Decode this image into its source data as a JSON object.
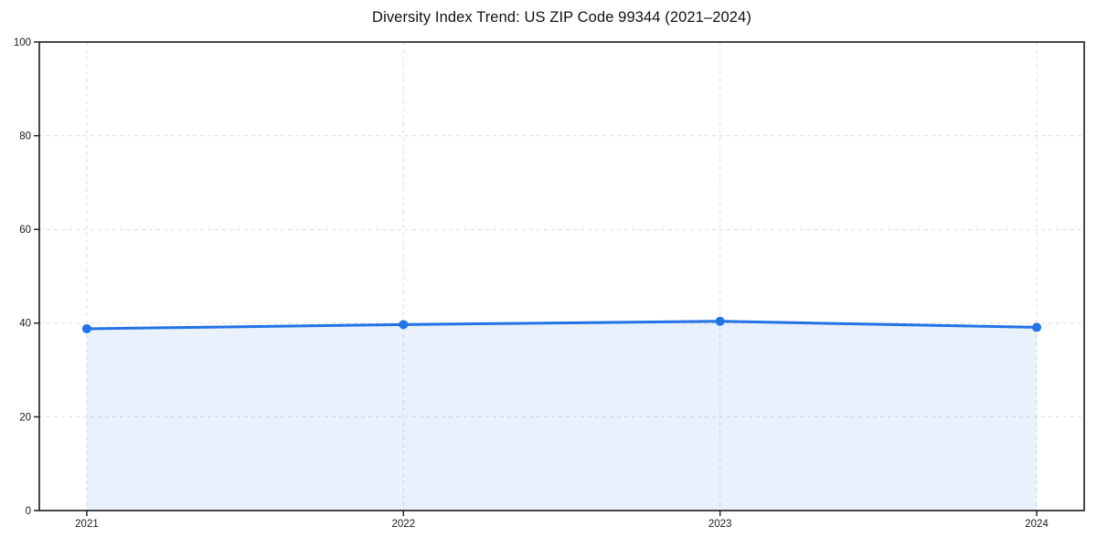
{
  "chart_data": {
    "type": "area",
    "title": "Diversity Index Trend: US ZIP Code 99344 (2021–2024)",
    "categories": [
      "2021",
      "2022",
      "2023",
      "2024"
    ],
    "x": [
      2021,
      2022,
      2023,
      2024
    ],
    "values": [
      38.8,
      39.7,
      40.4,
      39.1
    ],
    "xlabel": "",
    "ylabel": "",
    "ylim": [
      0,
      100
    ],
    "yticks": [
      0,
      20,
      40,
      60,
      80,
      100
    ],
    "grid": true,
    "grid_style": "dashed",
    "legend": "none",
    "colors": {
      "line": "#2273e6",
      "marker": "#2273e6",
      "fill": "rgba(34, 115, 230, 0.10)",
      "gridline": "#dddddd",
      "axis": "#1a1a1a",
      "tick_text": "#1a1a1a",
      "title_text": "#111111",
      "background": "#ffffff"
    }
  }
}
